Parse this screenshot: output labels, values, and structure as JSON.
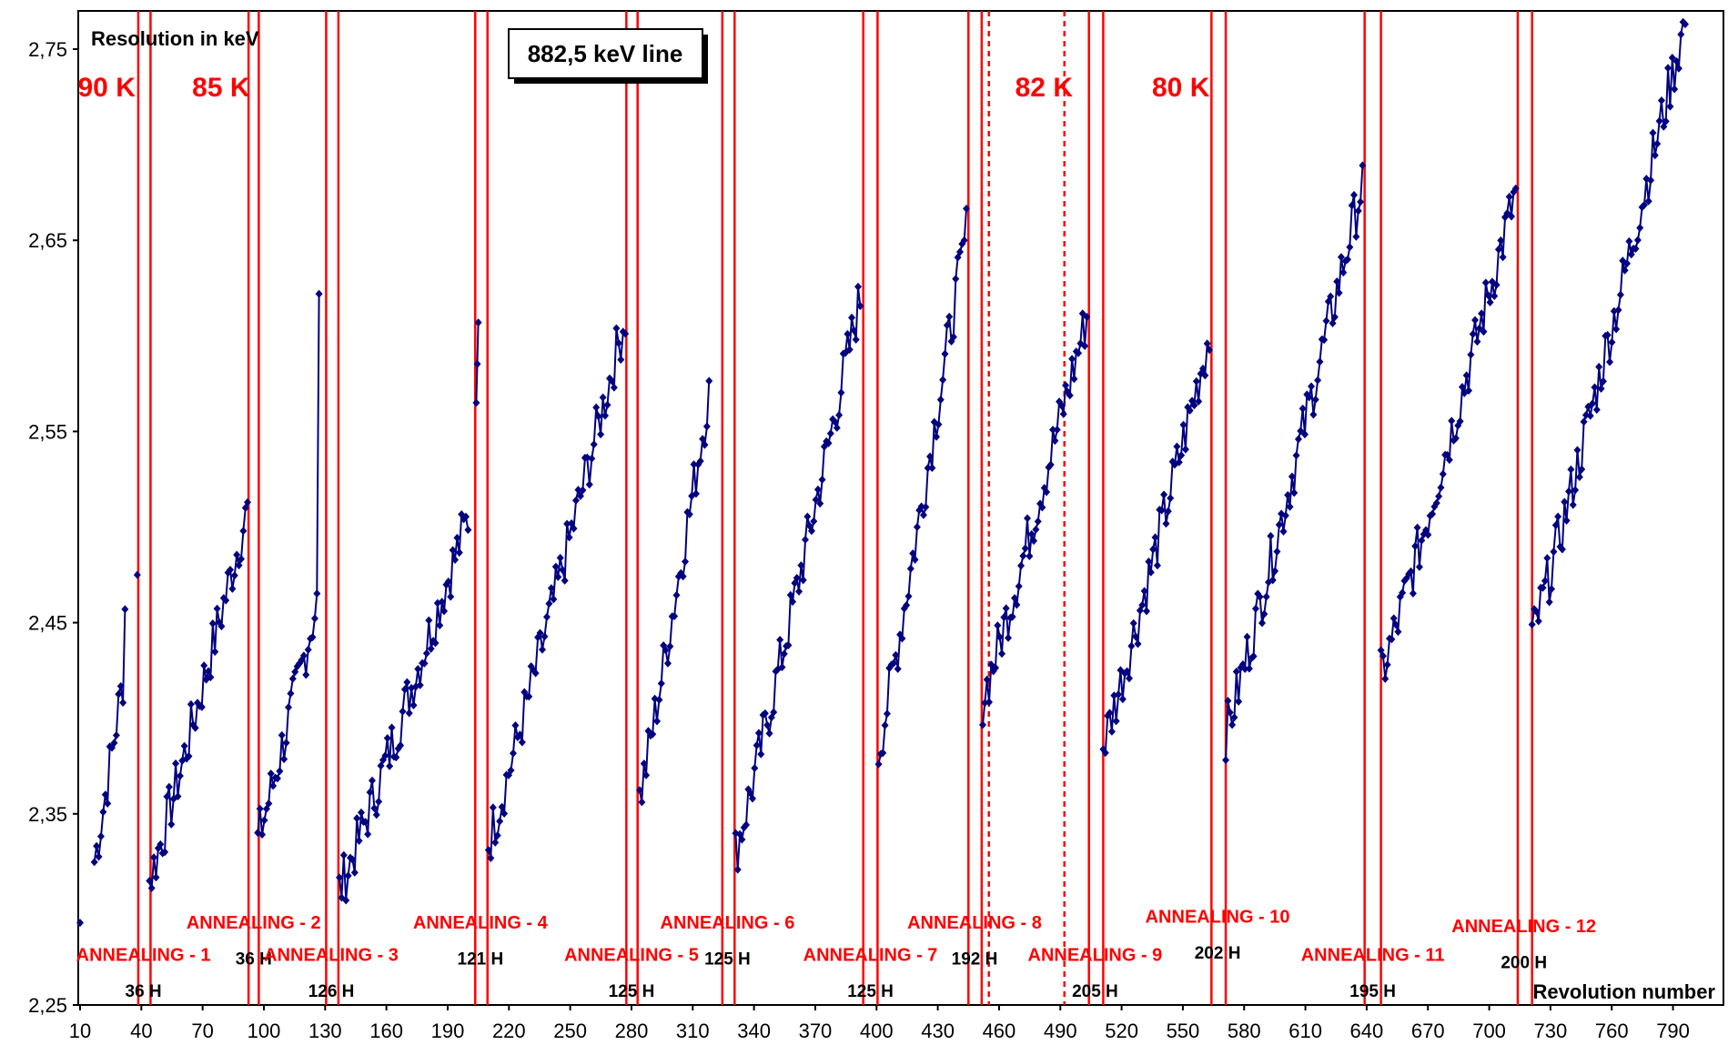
{
  "chart_data": {
    "type": "line",
    "ylabel": "Resolution in keV",
    "xlabel": "Revolution number",
    "title": "882,5 keV line",
    "xlim": [
      10,
      800
    ],
    "ylim": [
      2.25,
      2.77
    ],
    "x_ticks": [
      "10",
      "40",
      "70",
      "100",
      "130",
      "160",
      "190",
      "220",
      "250",
      "280",
      "310",
      "340",
      "370",
      "400",
      "430",
      "460",
      "490",
      "520",
      "550",
      "580",
      "610",
      "640",
      "670",
      "700",
      "730",
      "760",
      "790"
    ],
    "y_ticks": [
      "2,25",
      "2,35",
      "2,45",
      "2,55",
      "2,65",
      "2,75"
    ],
    "temperatures": [
      {
        "label": "90 K",
        "x": 23,
        "y": 2.73
      },
      {
        "label": "85 K",
        "x": 79,
        "y": 2.73
      },
      {
        "label": "82 K",
        "x": 482,
        "y": 2.73
      },
      {
        "label": "80 K",
        "x": 549,
        "y": 2.73
      }
    ],
    "annealing_lines": [
      {
        "x": 38.5,
        "style": "solid"
      },
      {
        "x": 44.5,
        "style": "solid"
      },
      {
        "x": 92.5,
        "style": "solid"
      },
      {
        "x": 97.5,
        "style": "solid"
      },
      {
        "x": 130.5,
        "style": "solid"
      },
      {
        "x": 136.5,
        "style": "solid"
      },
      {
        "x": 203.5,
        "style": "solid"
      },
      {
        "x": 209.5,
        "style": "solid"
      },
      {
        "x": 277.5,
        "style": "solid"
      },
      {
        "x": 283,
        "style": "solid"
      },
      {
        "x": 324.5,
        "style": "solid"
      },
      {
        "x": 330.5,
        "style": "solid"
      },
      {
        "x": 393.5,
        "style": "solid"
      },
      {
        "x": 400.5,
        "style": "solid"
      },
      {
        "x": 445,
        "style": "solid"
      },
      {
        "x": 451.5,
        "style": "solid"
      },
      {
        "x": 455,
        "style": "dashed"
      },
      {
        "x": 492,
        "style": "dashed"
      },
      {
        "x": 504,
        "style": "solid"
      },
      {
        "x": 511,
        "style": "solid"
      },
      {
        "x": 564,
        "style": "solid"
      },
      {
        "x": 571,
        "style": "solid"
      },
      {
        "x": 639,
        "style": "solid"
      },
      {
        "x": 647,
        "style": "solid"
      },
      {
        "x": 714,
        "style": "solid"
      },
      {
        "x": 721,
        "style": "solid"
      }
    ],
    "annotations": [
      {
        "label": "ANNEALING - 1",
        "hours": "36 H",
        "x": 41,
        "y": 2.273,
        "hy": 2.259
      },
      {
        "label": "ANNEALING - 2",
        "hours": "36 H",
        "x": 95,
        "y": 2.29,
        "hy": 2.276
      },
      {
        "label": "ANNEALING - 3",
        "hours": "126 H",
        "x": 133,
        "y": 2.273,
        "hy": 2.259
      },
      {
        "label": "ANNEALING - 4",
        "hours": "121 H",
        "x": 206,
        "y": 2.29,
        "hy": 2.276
      },
      {
        "label": "ANNEALING - 5",
        "hours": "125 H",
        "x": 280,
        "y": 2.273,
        "hy": 2.259
      },
      {
        "label": "ANNEALING - 6",
        "hours": "125 H",
        "x": 327,
        "y": 2.29,
        "hy": 2.276
      },
      {
        "label": "ANNEALING - 7",
        "hours": "125 H",
        "x": 397,
        "y": 2.273,
        "hy": 2.259
      },
      {
        "label": "ANNEALING - 8",
        "hours": "192 H",
        "x": 448,
        "y": 2.29,
        "hy": 2.276
      },
      {
        "label": "ANNEALING - 9",
        "hours": "205 H",
        "x": 507,
        "y": 2.273,
        "hy": 2.259
      },
      {
        "label": "ANNEALING - 10",
        "hours": "202 H",
        "x": 567,
        "y": 2.293,
        "hy": 2.279
      },
      {
        "label": "ANNEALING - 11",
        "hours": "195 H",
        "x": 643,
        "y": 2.273,
        "hy": 2.259
      },
      {
        "label": "ANNEALING - 12",
        "hours": "200 H",
        "x": 717,
        "y": 2.288,
        "hy": 2.274
      }
    ],
    "series": [
      {
        "segments": [
          {
            "x0": 10,
            "y0": 2.293,
            "x1": 10,
            "y1": 2.293,
            "n": 1
          },
          {
            "x0": 17,
            "y0": 2.325,
            "x1": 31,
            "y1": 2.42,
            "n": 14,
            "end": 2.457
          },
          {
            "x0": 38,
            "y0": 2.475,
            "x1": 38,
            "y1": 2.475,
            "n": 1
          },
          {
            "x0": 44,
            "y0": 2.315,
            "x1": 91,
            "y1": 2.505,
            "n": 45,
            "end": 2.513
          },
          {
            "x0": 97,
            "y0": 2.336,
            "x1": 126,
            "y1": 2.46,
            "n": 28,
            "end": 2.622
          },
          {
            "x0": 137,
            "y0": 2.31,
            "x1": 200,
            "y1": 2.505,
            "n": 60
          },
          {
            "x0": 204,
            "y0": 2.565,
            "x1": 205,
            "y1": 2.607,
            "n": 3
          },
          {
            "x0": 210,
            "y0": 2.335,
            "x1": 277,
            "y1": 2.61,
            "n": 62
          },
          {
            "x0": 284,
            "y0": 2.358,
            "x1": 318,
            "y1": 2.57,
            "n": 33
          },
          {
            "x0": 331,
            "y0": 2.33,
            "x1": 392,
            "y1": 2.62,
            "n": 60
          },
          {
            "x0": 401,
            "y0": 2.383,
            "x1": 444,
            "y1": 2.655,
            "n": 42
          },
          {
            "x0": 452,
            "y0": 2.41,
            "x1": 503,
            "y1": 2.61,
            "n": 50
          },
          {
            "x0": 511,
            "y0": 2.386,
            "x1": 563,
            "y1": 2.6,
            "n": 50
          },
          {
            "x0": 571,
            "y0": 2.392,
            "x1": 638,
            "y1": 2.68,
            "n": 65
          },
          {
            "x0": 647,
            "y0": 2.422,
            "x1": 713,
            "y1": 2.675,
            "n": 64
          },
          {
            "x0": 721,
            "y0": 2.442,
            "x1": 796,
            "y1": 2.765,
            "n": 72
          }
        ]
      }
    ]
  },
  "colors": {
    "series": "#000080",
    "annealing": "#ff0000",
    "grid": "#000000"
  }
}
